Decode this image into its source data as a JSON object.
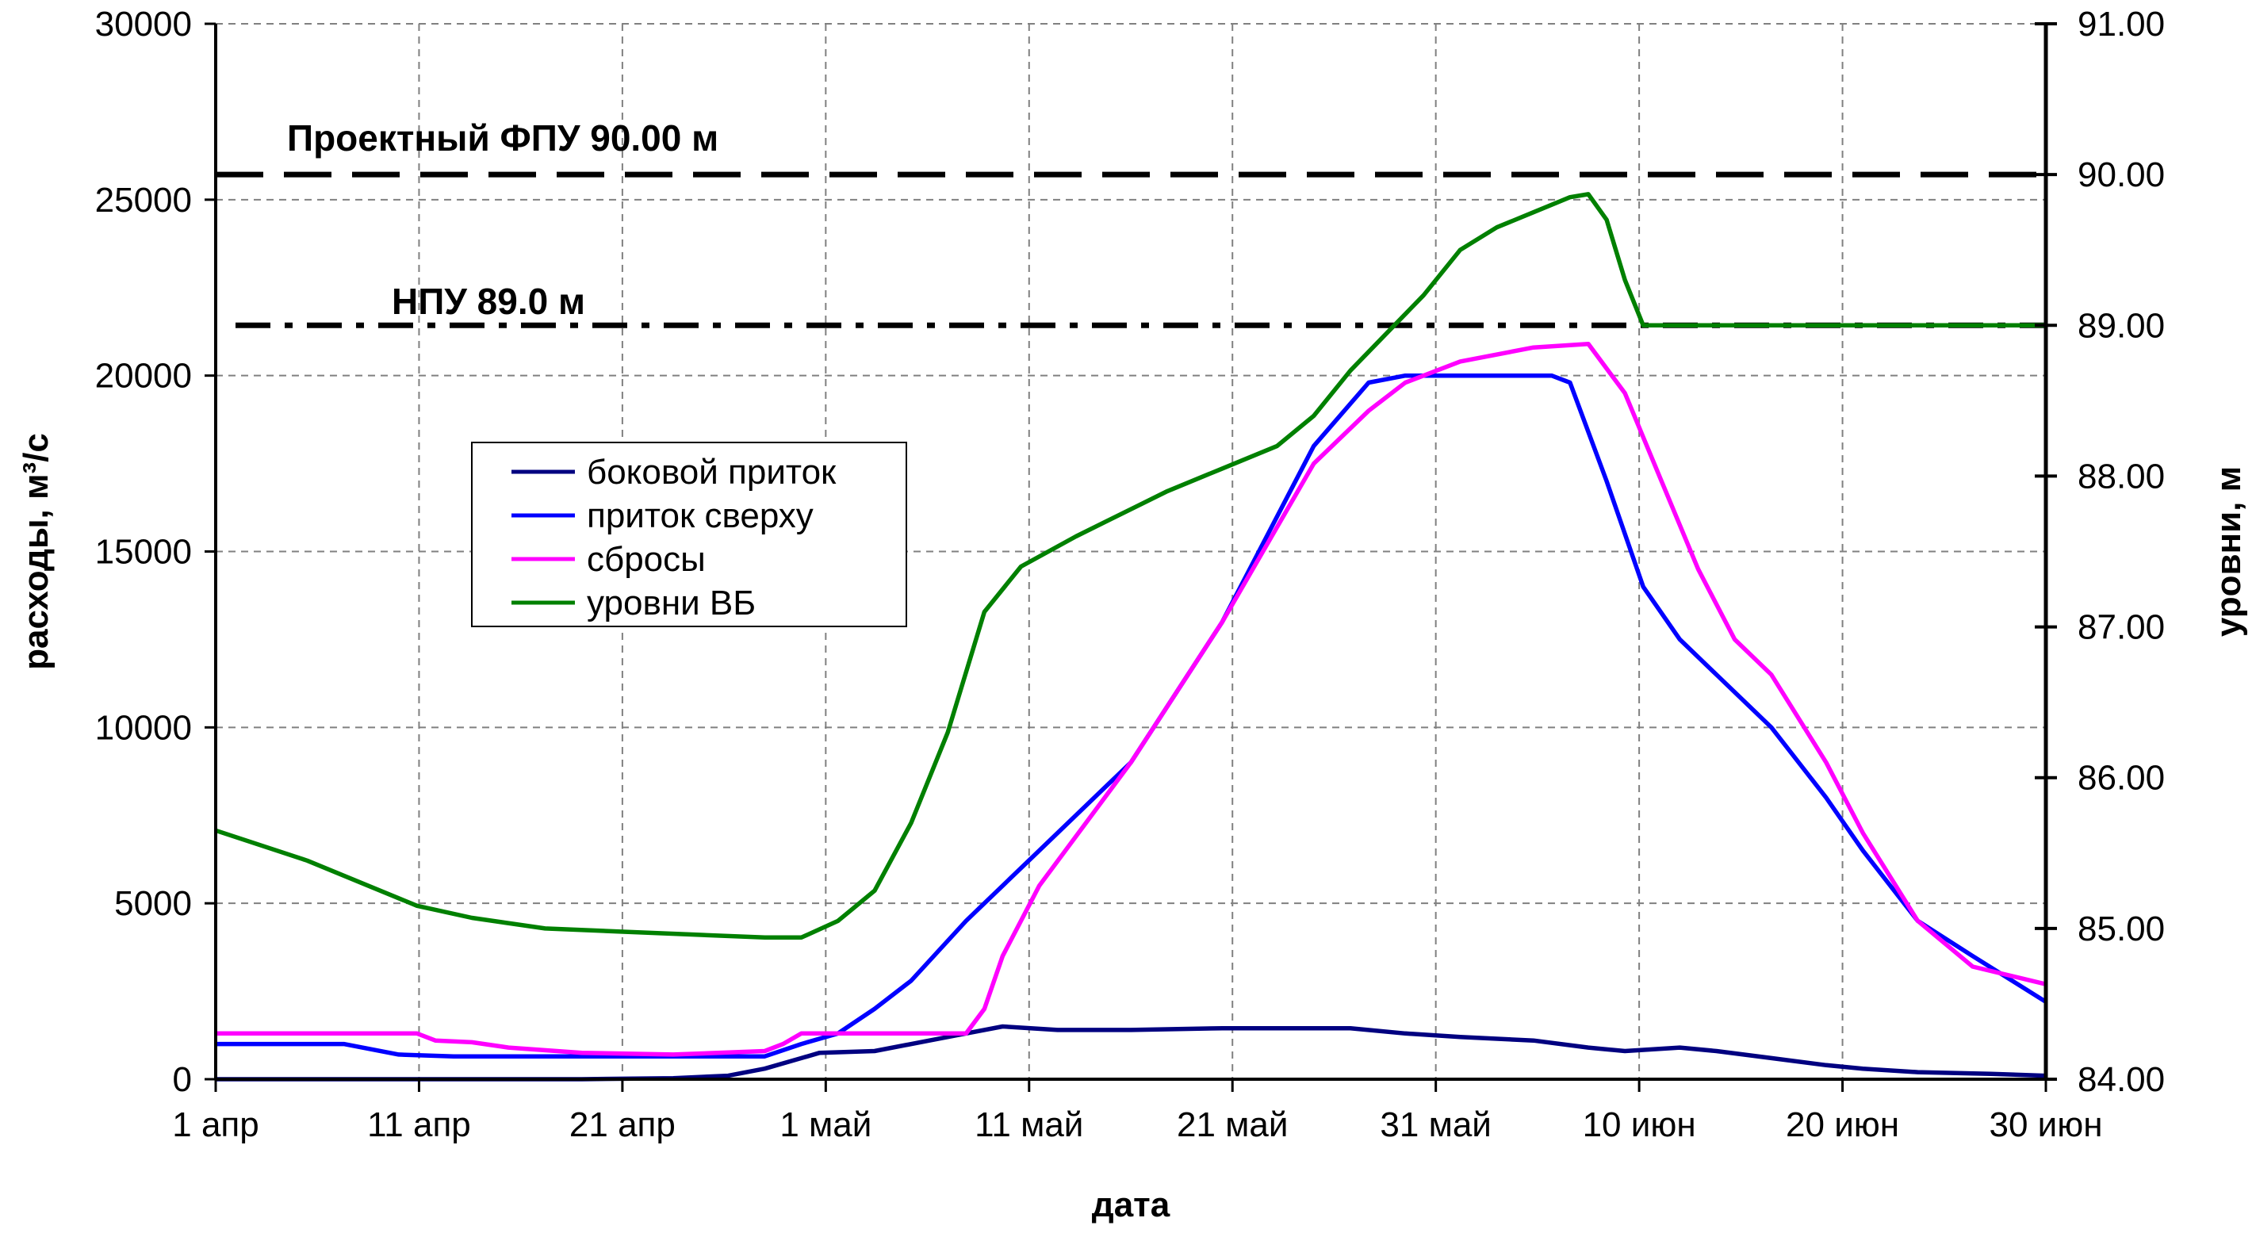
{
  "chart_data": {
    "type": "line",
    "xlabel": "дата",
    "ylabel_left": "расходы, м³/с",
    "ylabel_right": "уровни, м",
    "x_range": [
      "1 апр",
      "30 июн"
    ],
    "x_tick_labels": [
      "1 апр",
      "11 апр",
      "21 апр",
      "1 май",
      "11 май",
      "21 май",
      "31 май",
      "10 июн",
      "20 июн",
      "30 июн"
    ],
    "y_left": {
      "min": 0,
      "max": 30000,
      "ticks": [
        "0",
        "5000",
        "10000",
        "15000",
        "20000",
        "25000",
        "30000"
      ]
    },
    "y_right": {
      "min": 84,
      "max": 91,
      "ticks": [
        "84.00",
        "85.00",
        "86.00",
        "87.00",
        "88.00",
        "89.00",
        "90.00",
        "91.00"
      ]
    },
    "grid": true,
    "legend_position": "upper-left",
    "reference_lines": [
      {
        "label": "Проектный ФПУ 90.00 м",
        "value": 90.0,
        "axis": "right",
        "style": "dashed"
      },
      {
        "label": "НПУ 89.0 м",
        "value": 89.0,
        "axis": "right",
        "style": "dash-dot"
      }
    ],
    "series": [
      {
        "name": "боковой приток",
        "axis": "left",
        "color": "#000080",
        "points": [
          [
            0,
            0
          ],
          [
            10,
            0
          ],
          [
            20,
            0
          ],
          [
            25,
            30
          ],
          [
            28,
            100
          ],
          [
            30,
            300
          ],
          [
            32,
            600
          ],
          [
            33,
            750
          ],
          [
            36,
            800
          ],
          [
            39,
            1100
          ],
          [
            41,
            1300
          ],
          [
            43,
            1500
          ],
          [
            46,
            1400
          ],
          [
            50,
            1400
          ],
          [
            55,
            1450
          ],
          [
            60,
            1450
          ],
          [
            62,
            1450
          ],
          [
            65,
            1300
          ],
          [
            68,
            1200
          ],
          [
            72,
            1100
          ],
          [
            75,
            900
          ],
          [
            77,
            800
          ],
          [
            80,
            900
          ],
          [
            82,
            800
          ],
          [
            85,
            600
          ],
          [
            88,
            400
          ],
          [
            90,
            300
          ],
          [
            93,
            200
          ],
          [
            97,
            150
          ],
          [
            100,
            100
          ]
        ]
      },
      {
        "name": "приток сверху",
        "axis": "left",
        "color": "#0000ff",
        "points": [
          [
            0,
            1000
          ],
          [
            7,
            1000
          ],
          [
            10,
            700
          ],
          [
            13,
            650
          ],
          [
            20,
            650
          ],
          [
            30,
            650
          ],
          [
            32,
            1000
          ],
          [
            34,
            1300
          ],
          [
            36,
            2000
          ],
          [
            38,
            2800
          ],
          [
            41,
            4500
          ],
          [
            45,
            6500
          ],
          [
            50,
            9000
          ],
          [
            55,
            13000
          ],
          [
            60,
            18000
          ],
          [
            63,
            19800
          ],
          [
            65,
            20000
          ],
          [
            68,
            20000
          ],
          [
            73,
            20000
          ],
          [
            74,
            19800
          ],
          [
            76,
            17000
          ],
          [
            78,
            14000
          ],
          [
            80,
            12500
          ],
          [
            82,
            11500
          ],
          [
            85,
            10000
          ],
          [
            88,
            8000
          ],
          [
            90,
            6500
          ],
          [
            93,
            4500
          ],
          [
            96,
            3500
          ],
          [
            100,
            2200
          ]
        ]
      },
      {
        "name": "сбросы",
        "axis": "left",
        "color": "#ff00ff",
        "points": [
          [
            0,
            1300
          ],
          [
            11,
            1300
          ],
          [
            12,
            1100
          ],
          [
            14,
            1050
          ],
          [
            16,
            900
          ],
          [
            20,
            750
          ],
          [
            25,
            700
          ],
          [
            30,
            800
          ],
          [
            31,
            1000
          ],
          [
            32,
            1300
          ],
          [
            40,
            1300
          ],
          [
            41,
            1300
          ],
          [
            42,
            2000
          ],
          [
            43,
            3500
          ],
          [
            45,
            5500
          ],
          [
            50,
            9000
          ],
          [
            55,
            13000
          ],
          [
            60,
            17500
          ],
          [
            63,
            19000
          ],
          [
            65,
            19800
          ],
          [
            68,
            20400
          ],
          [
            72,
            20800
          ],
          [
            75,
            20900
          ],
          [
            76,
            20200
          ],
          [
            77,
            19500
          ],
          [
            79,
            17000
          ],
          [
            81,
            14500
          ],
          [
            83,
            12500
          ],
          [
            85,
            11500
          ],
          [
            88,
            9000
          ],
          [
            90,
            7000
          ],
          [
            93,
            4500
          ],
          [
            96,
            3200
          ],
          [
            100,
            2700
          ]
        ]
      },
      {
        "name": "уровни ВБ",
        "axis": "right",
        "color": "#008000",
        "points": [
          [
            0,
            85.65
          ],
          [
            5,
            85.45
          ],
          [
            8,
            85.3
          ],
          [
            11,
            85.15
          ],
          [
            14,
            85.07
          ],
          [
            18,
            85.0
          ],
          [
            22,
            84.98
          ],
          [
            26,
            84.96
          ],
          [
            30,
            84.94
          ],
          [
            32,
            84.94
          ],
          [
            34,
            85.05
          ],
          [
            36,
            85.25
          ],
          [
            38,
            85.7
          ],
          [
            40,
            86.3
          ],
          [
            42,
            87.1
          ],
          [
            44,
            87.4
          ],
          [
            47,
            87.6
          ],
          [
            52,
            87.9
          ],
          [
            55,
            88.05
          ],
          [
            58,
            88.2
          ],
          [
            60,
            88.4
          ],
          [
            62,
            88.7
          ],
          [
            64,
            88.95
          ],
          [
            66,
            89.2
          ],
          [
            68,
            89.5
          ],
          [
            70,
            89.65
          ],
          [
            72,
            89.75
          ],
          [
            74,
            89.85
          ],
          [
            75,
            89.87
          ],
          [
            76,
            89.7
          ],
          [
            77,
            89.3
          ],
          [
            78,
            89.0
          ],
          [
            80,
            89.0
          ],
          [
            90,
            89.0
          ],
          [
            100,
            89.0
          ]
        ]
      }
    ]
  }
}
